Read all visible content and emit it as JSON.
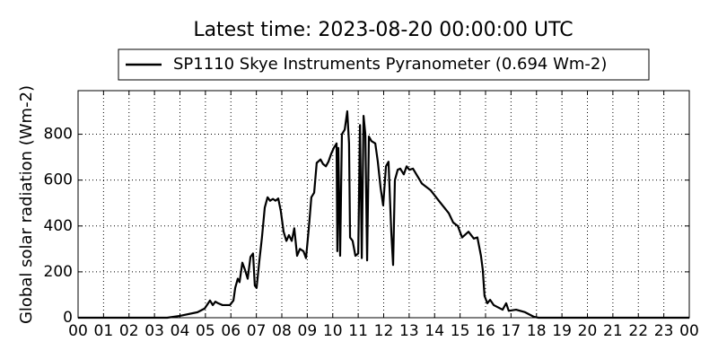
{
  "chart_data": {
    "type": "line",
    "title": "Latest time: 2023-08-20 00:00:00 UTC",
    "y_label": "Global solar radiation (Wm-2)",
    "grid": true,
    "legend_position": "top",
    "xlim": [
      0,
      24
    ],
    "ylim": [
      0,
      990
    ],
    "yticks": [
      0,
      200,
      400,
      600,
      800
    ],
    "xticks": [
      {
        "value": 0,
        "label": "00"
      },
      {
        "value": 1,
        "label": "01"
      },
      {
        "value": 2,
        "label": "02"
      },
      {
        "value": 3,
        "label": "03"
      },
      {
        "value": 4,
        "label": "04"
      },
      {
        "value": 5,
        "label": "05"
      },
      {
        "value": 6,
        "label": "06"
      },
      {
        "value": 7,
        "label": "07"
      },
      {
        "value": 8,
        "label": "08"
      },
      {
        "value": 9,
        "label": "09"
      },
      {
        "value": 10,
        "label": "10"
      },
      {
        "value": 11,
        "label": "11"
      },
      {
        "value": 12,
        "label": "12"
      },
      {
        "value": 13,
        "label": "13"
      },
      {
        "value": 14,
        "label": "14"
      },
      {
        "value": 15,
        "label": "15"
      },
      {
        "value": 16,
        "label": "16"
      },
      {
        "value": 17,
        "label": "17"
      },
      {
        "value": 18,
        "label": "18"
      },
      {
        "value": 19,
        "label": "19"
      },
      {
        "value": 20,
        "label": "20"
      },
      {
        "value": 21,
        "label": "21"
      },
      {
        "value": 22,
        "label": "22"
      },
      {
        "value": 23,
        "label": "23"
      },
      {
        "value": 24,
        "label": "00"
      }
    ],
    "x": [
      0,
      3.5,
      4,
      4.69,
      4.97,
      5.18,
      5.29,
      5.39,
      5.5,
      5.67,
      5.96,
      6.1,
      6.17,
      6.27,
      6.34,
      6.45,
      6.55,
      6.66,
      6.77,
      6.87,
      6.94,
      7.01,
      7.12,
      7.22,
      7.33,
      7.44,
      7.54,
      7.65,
      7.75,
      7.86,
      7.96,
      8.07,
      8.18,
      8.28,
      8.39,
      8.49,
      8.6,
      8.71,
      8.85,
      8.95,
      9.06,
      9.16,
      9.27,
      9.37,
      9.52,
      9.62,
      9.73,
      9.83,
      9.94,
      10.04,
      10.15,
      10.18,
      10.22,
      10.29,
      10.36,
      10.47,
      10.57,
      10.64,
      10.68,
      10.78,
      10.89,
      11,
      11.07,
      11.14,
      11.21,
      11.28,
      11.35,
      11.42,
      11.52,
      11.67,
      11.77,
      11.88,
      11.98,
      12.09,
      12.19,
      12.3,
      12.37,
      12.44,
      12.55,
      12.65,
      12.79,
      12.9,
      13.01,
      13.15,
      13.5,
      13.85,
      14.2,
      14.56,
      14.73,
      14.91,
      15.08,
      15.33,
      15.54,
      15.68,
      15.82,
      15.89,
      15.96,
      16.07,
      16.18,
      16.32,
      16.67,
      16.81,
      16.91,
      17.2,
      17.55,
      17.9,
      18.08,
      24
    ],
    "series": [
      {
        "name": "SP1110 Skye Instruments Pyranometer (0.694 Wm-2)",
        "color": "#000000",
        "values": [
          0,
          0,
          8,
          24,
          40,
          75,
          55,
          70,
          63,
          55,
          55,
          75,
          130,
          170,
          155,
          240,
          210,
          170,
          265,
          280,
          140,
          130,
          250,
          350,
          480,
          525,
          510,
          518,
          510,
          520,
          465,
          375,
          335,
          360,
          335,
          390,
          270,
          300,
          290,
          260,
          390,
          525,
          545,
          675,
          690,
          670,
          660,
          680,
          715,
          740,
          760,
          290,
          740,
          270,
          800,
          820,
          900,
          760,
          350,
          335,
          270,
          280,
          840,
          260,
          880,
          800,
          250,
          790,
          770,
          760,
          680,
          565,
          490,
          660,
          680,
          370,
          230,
          600,
          645,
          650,
          625,
          660,
          645,
          650,
          585,
          555,
          505,
          455,
          415,
          400,
          350,
          375,
          345,
          350,
          270,
          210,
          95,
          63,
          78,
          55,
          35,
          63,
          30,
          35,
          24,
          4,
          0,
          0
        ]
      }
    ]
  }
}
